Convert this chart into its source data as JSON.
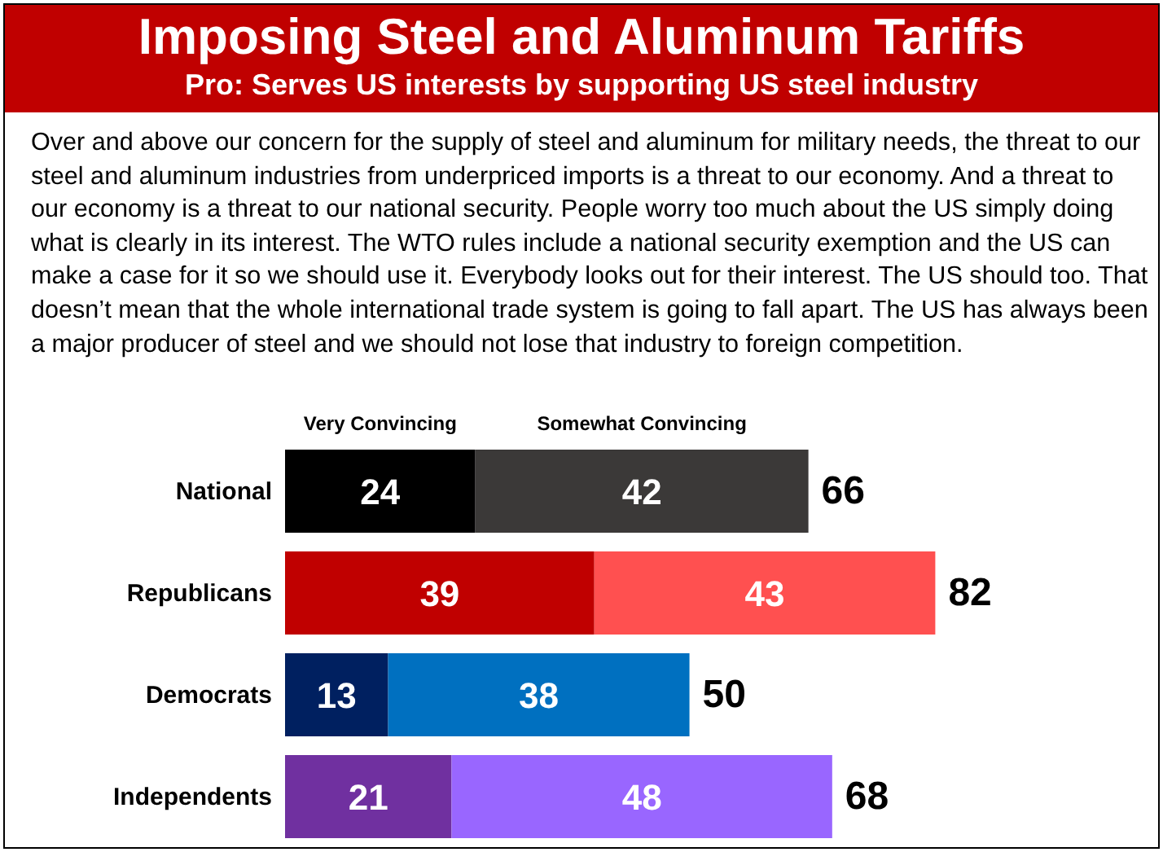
{
  "chart_data": {
    "type": "bar",
    "orientation": "horizontal",
    "stacked": true,
    "title": "Imposing Steel and Aluminum Tariffs",
    "subtitle": "Pro: Serves US interests by supporting US steel industry",
    "annotations": [
      "Over and above our concern for the supply of steel and aluminum for military needs, the threat to our steel and aluminum industries from underpriced imports is a threat to our economy. And a threat to our economy is a threat to our national security. People worry too much about the US simply doing what is clearly in its interest. The WTO rules include a national security exemption and the US can make a case for it so we should use it. Everybody looks out for their interest. The US should too. That doesn’t mean that the whole international trade system is going to fall apart. The US has always been a major producer of steel and we should not lose that industry to foreign competition."
    ],
    "categories": [
      "National",
      "Republicans",
      "Democrats",
      "Independents"
    ],
    "series": [
      {
        "name": "Very Convincing",
        "colors": [
          "#000000",
          "#c00000",
          "#002060",
          "#7030a0"
        ],
        "values": [
          24,
          39,
          13,
          21
        ]
      },
      {
        "name": "Somewhat Convincing",
        "colors": [
          "#3b3938",
          "#ff5050",
          "#0070c0",
          "#9966ff"
        ],
        "values": [
          42,
          43,
          38,
          48
        ]
      }
    ],
    "data_labels": true,
    "totals": [
      "66",
      "82",
      "50",
      "68"
    ]
  }
}
